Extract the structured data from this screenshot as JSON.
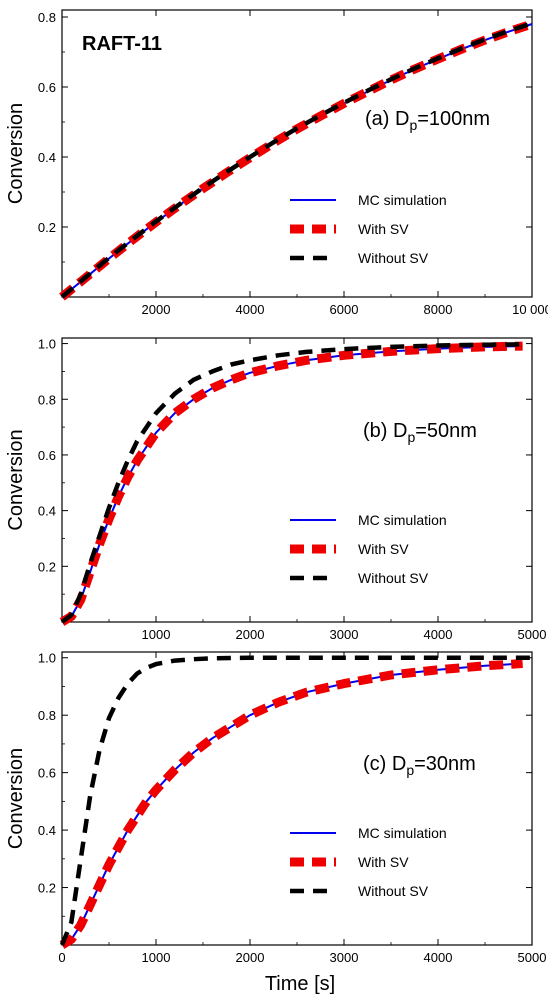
{
  "figure_label": "RAFT-11",
  "x_axis_label": "Time [s]",
  "colors": {
    "mc": "#0000ee",
    "with_sv": "#ee0000",
    "without_sv": "#000000",
    "axis": "#000000"
  },
  "chart_data": [
    {
      "type": "line",
      "panel_label": "(a) D",
      "panel_label_sub": "p",
      "panel_label_suffix": "=100nm",
      "ylabel": "Conversion",
      "xlabel": "",
      "xlim": [
        0,
        10000
      ],
      "ylim": [
        0,
        0.82
      ],
      "xticks": [
        2000,
        4000,
        6000,
        8000,
        10000
      ],
      "xtick_labels": [
        "2000",
        "4000",
        "6000",
        "8000",
        "10 000"
      ],
      "yticks": [
        0.2,
        0.4,
        0.6,
        0.8
      ],
      "ytick_labels": [
        "0.2",
        "0.4",
        "0.6",
        "0.8"
      ],
      "legend_position": "lower-right",
      "series": [
        {
          "name": "MC simulation",
          "style": "solid",
          "color": "#0000ee",
          "x": [
            0,
            500,
            1000,
            1500,
            2000,
            2500,
            3000,
            3500,
            4000,
            4500,
            5000,
            5500,
            6000,
            6500,
            7000,
            7500,
            8000,
            8500,
            9000,
            9500,
            10000
          ],
          "y": [
            0,
            0.055,
            0.11,
            0.163,
            0.214,
            0.263,
            0.31,
            0.355,
            0.398,
            0.44,
            0.48,
            0.517,
            0.553,
            0.587,
            0.62,
            0.651,
            0.68,
            0.708,
            0.734,
            0.758,
            0.78
          ]
        },
        {
          "name": "With SV",
          "style": "thick-dash",
          "color": "#ee0000",
          "x": [
            0,
            500,
            1000,
            1500,
            2000,
            2500,
            3000,
            3500,
            4000,
            4500,
            5000,
            5500,
            6000,
            6500,
            7000,
            7500,
            8000,
            8500,
            9000,
            9500,
            10000
          ],
          "y": [
            0,
            0.055,
            0.11,
            0.163,
            0.214,
            0.263,
            0.31,
            0.355,
            0.398,
            0.44,
            0.48,
            0.517,
            0.553,
            0.587,
            0.62,
            0.651,
            0.68,
            0.708,
            0.734,
            0.758,
            0.78
          ]
        },
        {
          "name": "Without SV",
          "style": "dash",
          "color": "#000000",
          "x": [
            0,
            500,
            1000,
            1500,
            2000,
            2500,
            3000,
            3500,
            4000,
            4500,
            5000,
            5500,
            6000,
            6500,
            7000,
            7500,
            8000,
            8500,
            9000,
            9500,
            10000
          ],
          "y": [
            0,
            0.056,
            0.112,
            0.165,
            0.216,
            0.265,
            0.312,
            0.357,
            0.4,
            0.442,
            0.482,
            0.519,
            0.555,
            0.589,
            0.622,
            0.653,
            0.682,
            0.71,
            0.736,
            0.76,
            0.782
          ]
        }
      ]
    },
    {
      "type": "line",
      "panel_label": "(b) D",
      "panel_label_sub": "p",
      "panel_label_suffix": "=50nm",
      "ylabel": "Conversion",
      "xlabel": "",
      "xlim": [
        0,
        5000
      ],
      "ylim": [
        0,
        1.02
      ],
      "xticks": [
        1000,
        2000,
        3000,
        4000,
        5000
      ],
      "xtick_labels": [
        "1000",
        "2000",
        "3000",
        "4000",
        "5000"
      ],
      "yticks": [
        0.2,
        0.4,
        0.6,
        0.8,
        1.0
      ],
      "ytick_labels": [
        "0.2",
        "0.4",
        "0.6",
        "0.8",
        "1.0"
      ],
      "legend_position": "lower-right",
      "series": [
        {
          "name": "MC simulation",
          "style": "solid",
          "color": "#0000ee",
          "x": [
            0,
            100,
            200,
            300,
            400,
            500,
            600,
            700,
            800,
            900,
            1000,
            1200,
            1400,
            1600,
            1800,
            2000,
            2300,
            2600,
            3000,
            3500,
            4000,
            4500,
            4900
          ],
          "y": [
            0,
            0.02,
            0.08,
            0.18,
            0.28,
            0.37,
            0.45,
            0.52,
            0.58,
            0.63,
            0.68,
            0.75,
            0.8,
            0.84,
            0.87,
            0.895,
            0.92,
            0.94,
            0.958,
            0.972,
            0.982,
            0.988,
            0.991
          ]
        },
        {
          "name": "With SV",
          "style": "thick-dash",
          "color": "#ee0000",
          "x": [
            0,
            100,
            200,
            300,
            400,
            500,
            600,
            700,
            800,
            900,
            1000,
            1200,
            1400,
            1600,
            1800,
            2000,
            2300,
            2600,
            3000,
            3500,
            4000,
            4500,
            4900
          ],
          "y": [
            0,
            0.02,
            0.08,
            0.18,
            0.28,
            0.37,
            0.45,
            0.52,
            0.58,
            0.63,
            0.68,
            0.75,
            0.8,
            0.84,
            0.87,
            0.895,
            0.92,
            0.94,
            0.958,
            0.972,
            0.982,
            0.988,
            0.991
          ]
        },
        {
          "name": "Without SV",
          "style": "dash",
          "color": "#000000",
          "x": [
            0,
            100,
            200,
            300,
            400,
            500,
            600,
            700,
            800,
            900,
            1000,
            1200,
            1400,
            1600,
            1800,
            2000,
            2300,
            2600,
            3000,
            3500,
            4000,
            4500,
            4900
          ],
          "y": [
            0,
            0.025,
            0.1,
            0.21,
            0.31,
            0.41,
            0.5,
            0.58,
            0.65,
            0.7,
            0.75,
            0.82,
            0.87,
            0.9,
            0.925,
            0.94,
            0.958,
            0.97,
            0.98,
            0.988,
            0.993,
            0.996,
            0.997
          ]
        }
      ]
    },
    {
      "type": "line",
      "panel_label": "(c) D",
      "panel_label_sub": "p",
      "panel_label_suffix": "=30nm",
      "ylabel": "Conversion",
      "xlabel": "Time [s]",
      "xlim": [
        0,
        5000
      ],
      "ylim": [
        0,
        1.02
      ],
      "xticks": [
        0,
        1000,
        2000,
        3000,
        4000,
        5000
      ],
      "xtick_labels": [
        "0",
        "1000",
        "2000",
        "3000",
        "4000",
        "5000"
      ],
      "yticks": [
        0.2,
        0.4,
        0.6,
        0.8,
        1.0
      ],
      "ytick_labels": [
        "0.2",
        "0.4",
        "0.6",
        "0.8",
        "1.0"
      ],
      "legend_position": "lower-right",
      "series": [
        {
          "name": "MC simulation",
          "style": "solid",
          "color": "#0000ee",
          "x": [
            0,
            100,
            200,
            300,
            400,
            500,
            600,
            700,
            800,
            900,
            1000,
            1200,
            1400,
            1600,
            1800,
            2000,
            2300,
            2600,
            3000,
            3500,
            4000,
            4500,
            4900
          ],
          "y": [
            0,
            0.02,
            0.07,
            0.14,
            0.21,
            0.28,
            0.34,
            0.4,
            0.45,
            0.5,
            0.54,
            0.61,
            0.67,
            0.72,
            0.76,
            0.8,
            0.845,
            0.88,
            0.91,
            0.94,
            0.958,
            0.972,
            0.98
          ]
        },
        {
          "name": "With SV",
          "style": "thick-dash",
          "color": "#ee0000",
          "x": [
            0,
            100,
            200,
            300,
            400,
            500,
            600,
            700,
            800,
            900,
            1000,
            1200,
            1400,
            1600,
            1800,
            2000,
            2300,
            2600,
            3000,
            3500,
            4000,
            4500,
            4900
          ],
          "y": [
            0,
            0.02,
            0.07,
            0.14,
            0.21,
            0.28,
            0.34,
            0.4,
            0.45,
            0.5,
            0.54,
            0.61,
            0.67,
            0.72,
            0.76,
            0.8,
            0.845,
            0.88,
            0.91,
            0.94,
            0.958,
            0.972,
            0.98
          ]
        },
        {
          "name": "Without SV",
          "style": "dash",
          "color": "#000000",
          "x": [
            0,
            100,
            200,
            300,
            400,
            500,
            600,
            700,
            800,
            900,
            1000,
            1200,
            1400,
            1600,
            2000,
            2500,
            3000,
            3500,
            4000,
            4500,
            5000
          ],
          "y": [
            0,
            0.08,
            0.3,
            0.52,
            0.68,
            0.79,
            0.86,
            0.91,
            0.945,
            0.965,
            0.978,
            0.99,
            0.995,
            0.998,
            1.0,
            1.0,
            1.0,
            1.0,
            1.0,
            1.0,
            1.0
          ]
        }
      ]
    }
  ]
}
